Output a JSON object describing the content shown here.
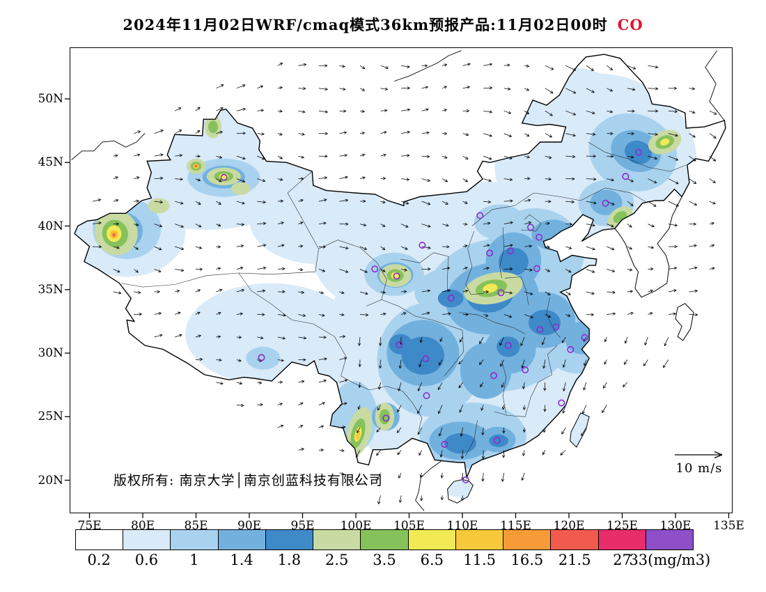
{
  "title": {
    "main": "2024年11月02日WRF/cmaq模式36km预报产品:11月02日00时",
    "species": "CO",
    "species_color": "#E8112A"
  },
  "map": {
    "copyright": "版权所有: 南京大学│南京创蓝科技有限公司",
    "wind_scale_label": "10 m/s"
  },
  "chart_data": {
    "type": "heatmap",
    "subtype": "filled-contour-forecast-map",
    "title": "2024年11月02日WRF/cmaq模式36km预报产品:11月02日00时 CO",
    "species": "CO",
    "units": "mg/m3",
    "model": "WRF/cmaq 36km",
    "forecast_time": "11月02日00时",
    "lon_range": [
      73.2,
      135.3
    ],
    "lat_range": [
      17.5,
      54.0
    ],
    "lon_ticks": [
      {
        "label": "75E",
        "value": 75
      },
      {
        "label": "80E",
        "value": 80
      },
      {
        "label": "85E",
        "value": 85
      },
      {
        "label": "90E",
        "value": 90
      },
      {
        "label": "95E",
        "value": 95
      },
      {
        "label": "100E",
        "value": 100
      },
      {
        "label": "105E",
        "value": 105
      },
      {
        "label": "110E",
        "value": 110
      },
      {
        "label": "115E",
        "value": 115
      },
      {
        "label": "120E",
        "value": 120
      },
      {
        "label": "125E",
        "value": 125
      },
      {
        "label": "130E",
        "value": 130
      },
      {
        "label": "135E",
        "value": 135
      }
    ],
    "lat_ticks": [
      {
        "label": "50N",
        "value": 50
      },
      {
        "label": "45N",
        "value": 45
      },
      {
        "label": "40N",
        "value": 40
      },
      {
        "label": "35N",
        "value": 35
      },
      {
        "label": "30N",
        "value": 30
      },
      {
        "label": "25N",
        "value": 25
      },
      {
        "label": "20N",
        "value": 20
      }
    ],
    "colorbar": {
      "tick_labels": [
        "0.2",
        "0.6",
        "1",
        "1.4",
        "1.8",
        "2.5",
        "3.5",
        "6.5",
        "11.5",
        "16.5",
        "21.5",
        "27",
        "33(mg/m3)"
      ],
      "colors": [
        "#FFFFFF",
        "#D9EAF8",
        "#A9D2EF",
        "#72B1DE",
        "#3E89C8",
        "#C9DAA3",
        "#86C25B",
        "#F2EA55",
        "#F6C93B",
        "#F79A38",
        "#F15B4E",
        "#E82D6B",
        "#8F4FC8"
      ]
    },
    "station_marker_color": "#8A2BD0",
    "station_markers": [
      [
        116.4,
        39.9
      ],
      [
        117.2,
        39.12
      ],
      [
        114.5,
        38.04
      ],
      [
        112.55,
        37.87
      ],
      [
        111.65,
        40.82
      ],
      [
        123.43,
        41.8
      ],
      [
        125.32,
        43.9
      ],
      [
        126.53,
        45.8
      ],
      [
        121.47,
        31.23
      ],
      [
        118.78,
        32.06
      ],
      [
        120.15,
        30.28
      ],
      [
        117.28,
        31.86
      ],
      [
        119.3,
        26.08
      ],
      [
        115.89,
        28.68
      ],
      [
        116.99,
        36.65
      ],
      [
        113.62,
        34.75
      ],
      [
        114.3,
        30.6
      ],
      [
        112.94,
        28.23
      ],
      [
        113.26,
        23.13
      ],
      [
        108.33,
        22.82
      ],
      [
        110.32,
        20.03
      ],
      [
        106.55,
        29.56
      ],
      [
        104.07,
        30.67
      ],
      [
        106.63,
        26.65
      ],
      [
        102.83,
        24.88
      ],
      [
        91.14,
        29.65
      ],
      [
        108.94,
        34.34
      ],
      [
        103.83,
        36.06
      ],
      [
        101.78,
        36.62
      ],
      [
        106.23,
        38.49
      ],
      [
        87.62,
        43.83
      ]
    ],
    "patch_format": [
      "lon",
      "lat",
      "rx_deg",
      "ry_deg",
      "rotate_deg",
      "color_index"
    ],
    "co_field_patches": [
      [
        112,
        31,
        14.5,
        12.5,
        0,
        1
      ],
      [
        122.5,
        45,
        9.5,
        7,
        0,
        1
      ],
      [
        104,
        37.5,
        8,
        4.5,
        0,
        1
      ],
      [
        86,
        44.5,
        10,
        4.8,
        0,
        1
      ],
      [
        78.5,
        39.5,
        5.5,
        3.5,
        0,
        1
      ],
      [
        96.5,
        40.5,
        6.5,
        3.5,
        0,
        1
      ],
      [
        92,
        31.5,
        8,
        4,
        0,
        1
      ],
      [
        99.5,
        27.5,
        6,
        5,
        0,
        1
      ],
      [
        120,
        48.5,
        6,
        4,
        0,
        1
      ],
      [
        113.5,
        33,
        7.5,
        6,
        0,
        2
      ],
      [
        107,
        29.5,
        5,
        4.5,
        0,
        2
      ],
      [
        111,
        23.5,
        5,
        2.6,
        0,
        2
      ],
      [
        116.8,
        37.8,
        4.6,
        3.6,
        0,
        2
      ],
      [
        126,
        45.8,
        4.2,
        3,
        20,
        2
      ],
      [
        87.6,
        43.8,
        3.4,
        1.5,
        0,
        2
      ],
      [
        78.5,
        39.8,
        3.2,
        2.4,
        0,
        2
      ],
      [
        103.6,
        36.2,
        2.8,
        1.7,
        0,
        2
      ],
      [
        109.5,
        34.8,
        4,
        2,
        0,
        2
      ],
      [
        120.8,
        30.8,
        3.2,
        2.4,
        0,
        2
      ],
      [
        99.8,
        25,
        2.2,
        2.8,
        0,
        2
      ],
      [
        123.5,
        41.8,
        2.6,
        1.8,
        0,
        2
      ],
      [
        91.3,
        29.6,
        1.6,
        0.9,
        0,
        2
      ],
      [
        113.5,
        40.3,
        2.4,
        1.4,
        0,
        2
      ],
      [
        112.8,
        34.3,
        4.4,
        2.8,
        -10,
        3
      ],
      [
        106.3,
        30,
        3.4,
        2.6,
        0,
        3
      ],
      [
        114.8,
        37.3,
        2.6,
        2.2,
        0,
        3
      ],
      [
        117.6,
        32.6,
        3,
        2.2,
        0,
        3
      ],
      [
        109.8,
        23.1,
        2.9,
        1.5,
        0,
        3
      ],
      [
        126.3,
        45.9,
        2.4,
        1.6,
        20,
        3
      ],
      [
        112.2,
        28.6,
        2.4,
        2.2,
        0,
        3
      ],
      [
        114.5,
        30.3,
        2.4,
        1.9,
        0,
        3
      ],
      [
        87.6,
        43.85,
        2,
        0.9,
        0,
        3
      ],
      [
        78,
        39.6,
        2,
        1.5,
        0,
        3
      ],
      [
        121.3,
        31.2,
        1.7,
        1.3,
        0,
        3
      ],
      [
        103.7,
        36.15,
        1.7,
        1,
        0,
        3
      ],
      [
        118.5,
        39.3,
        2,
        1.2,
        0,
        3
      ],
      [
        113.3,
        23.2,
        1.7,
        1,
        0,
        3
      ],
      [
        123.5,
        41.85,
        1.5,
        1,
        0,
        3
      ],
      [
        102.8,
        25,
        1.3,
        1.1,
        0,
        3
      ],
      [
        112.6,
        34.6,
        2.2,
        1.4,
        -10,
        4
      ],
      [
        106.3,
        29.8,
        2,
        1.5,
        0,
        4
      ],
      [
        104.2,
        30.7,
        1.1,
        0.8,
        0,
        4
      ],
      [
        114.8,
        37.2,
        1.4,
        1.1,
        0,
        4
      ],
      [
        117.7,
        32.4,
        1.5,
        1,
        0,
        4
      ],
      [
        126.5,
        45.8,
        1.3,
        0.9,
        20,
        4
      ],
      [
        109.8,
        22.9,
        1.5,
        0.8,
        0,
        4
      ],
      [
        108.9,
        34.3,
        1.2,
        0.7,
        0,
        4
      ],
      [
        114.3,
        30.5,
        1.1,
        0.8,
        0,
        4
      ],
      [
        87.6,
        43.85,
        1.2,
        0.5,
        0,
        4
      ],
      [
        113.4,
        23.1,
        0.9,
        0.5,
        0,
        4
      ],
      [
        112.9,
        35.1,
        2.8,
        1.2,
        -12,
        5
      ],
      [
        103.7,
        36.1,
        1.5,
        0.9,
        0,
        5
      ],
      [
        87.6,
        43.9,
        1.6,
        0.7,
        0,
        5
      ],
      [
        77.5,
        39.5,
        2,
        1.8,
        -20,
        5
      ],
      [
        129,
        46.6,
        1.6,
        0.9,
        -20,
        5
      ],
      [
        124.8,
        40.7,
        1.3,
        0.7,
        -35,
        5
      ],
      [
        100.3,
        23.8,
        1.1,
        2,
        15,
        5
      ],
      [
        102.7,
        25,
        0.9,
        1.1,
        0,
        5
      ],
      [
        85,
        44.7,
        0.9,
        0.6,
        0,
        5
      ],
      [
        86.6,
        47.8,
        0.8,
        0.9,
        0,
        5
      ],
      [
        81.5,
        41.6,
        1,
        0.6,
        0,
        5
      ],
      [
        89.2,
        42.95,
        0.9,
        0.5,
        0,
        5
      ],
      [
        112.7,
        35.1,
        1.5,
        0.65,
        -12,
        6
      ],
      [
        77.4,
        39.4,
        1.2,
        1.1,
        -20,
        6
      ],
      [
        103.7,
        36.1,
        0.8,
        0.5,
        0,
        6
      ],
      [
        87.6,
        43.9,
        0.9,
        0.4,
        0,
        6
      ],
      [
        129,
        46.6,
        0.9,
        0.5,
        -20,
        6
      ],
      [
        100.2,
        23.7,
        0.6,
        1.2,
        15,
        6
      ],
      [
        102.7,
        25,
        0.5,
        0.6,
        0,
        6
      ],
      [
        85,
        44.7,
        0.5,
        0.35,
        0,
        6
      ],
      [
        86.6,
        47.8,
        0.45,
        0.5,
        0,
        6
      ],
      [
        124.8,
        40.7,
        0.7,
        0.4,
        -35,
        6
      ],
      [
        77.3,
        39.4,
        0.7,
        0.65,
        0,
        7
      ],
      [
        112.6,
        35.1,
        0.7,
        0.35,
        -12,
        7
      ],
      [
        103.7,
        36.1,
        0.4,
        0.28,
        0,
        7
      ],
      [
        87.6,
        43.9,
        0.45,
        0.22,
        0,
        7
      ],
      [
        100.2,
        23.6,
        0.3,
        0.6,
        15,
        7
      ],
      [
        129,
        46.6,
        0.45,
        0.25,
        -20,
        7
      ],
      [
        77.3,
        39.35,
        0.4,
        0.35,
        0,
        8
      ],
      [
        85,
        44.7,
        0.28,
        0.2,
        0,
        8
      ],
      [
        100.2,
        23.5,
        0.18,
        0.35,
        15,
        8
      ],
      [
        77.3,
        39.3,
        0.22,
        0.2,
        0,
        9
      ],
      [
        85,
        44.72,
        0.16,
        0.12,
        0,
        9
      ],
      [
        85,
        44.72,
        0.09,
        0.07,
        0,
        10
      ],
      [
        77.3,
        39.3,
        0.1,
        0.09,
        0,
        10
      ]
    ],
    "wind": {
      "reference_speed_label": "10 m/s"
    }
  }
}
